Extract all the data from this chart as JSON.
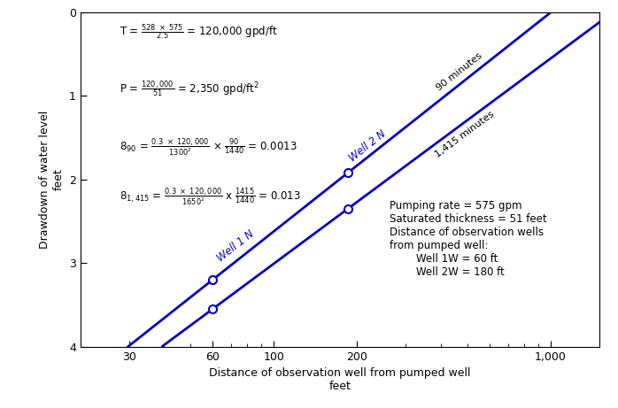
{
  "xlabel": "Distance of observation well from pumped well\nfeet",
  "ylabel": "Drawdown of water level\nfeet",
  "xlim": [
    20,
    1500
  ],
  "ylim": [
    4,
    0
  ],
  "background_color": "#ffffff",
  "line_color": "#0000cc",
  "text_color": "#000000",
  "line_width": 2.0,
  "xticks": [
    30,
    60,
    100,
    200,
    1000
  ],
  "xtick_labels": [
    "30",
    "60",
    "100",
    "200",
    "1,000"
  ],
  "yticks": [
    0,
    1,
    2,
    3,
    4
  ],
  "well1_x": 60,
  "well1_90min_y": 3.2,
  "well1_1415min_y": 3.55,
  "well2_x": 185,
  "well2_90min_y": 1.92,
  "well2_1415min_y": 2.35,
  "label_90min": "90 minutes",
  "label_1415min": "1,415 minutes",
  "well1_label": "Well 1 N",
  "well2_label": "Well 2 N",
  "info_text": "Pumping rate = 575 gpm\nSaturated thickness = 51 feet\nDistance of observation wells\nfrom pumped well:\n        Well 1W = 60 ft\n        Well 2W = 180 ft"
}
